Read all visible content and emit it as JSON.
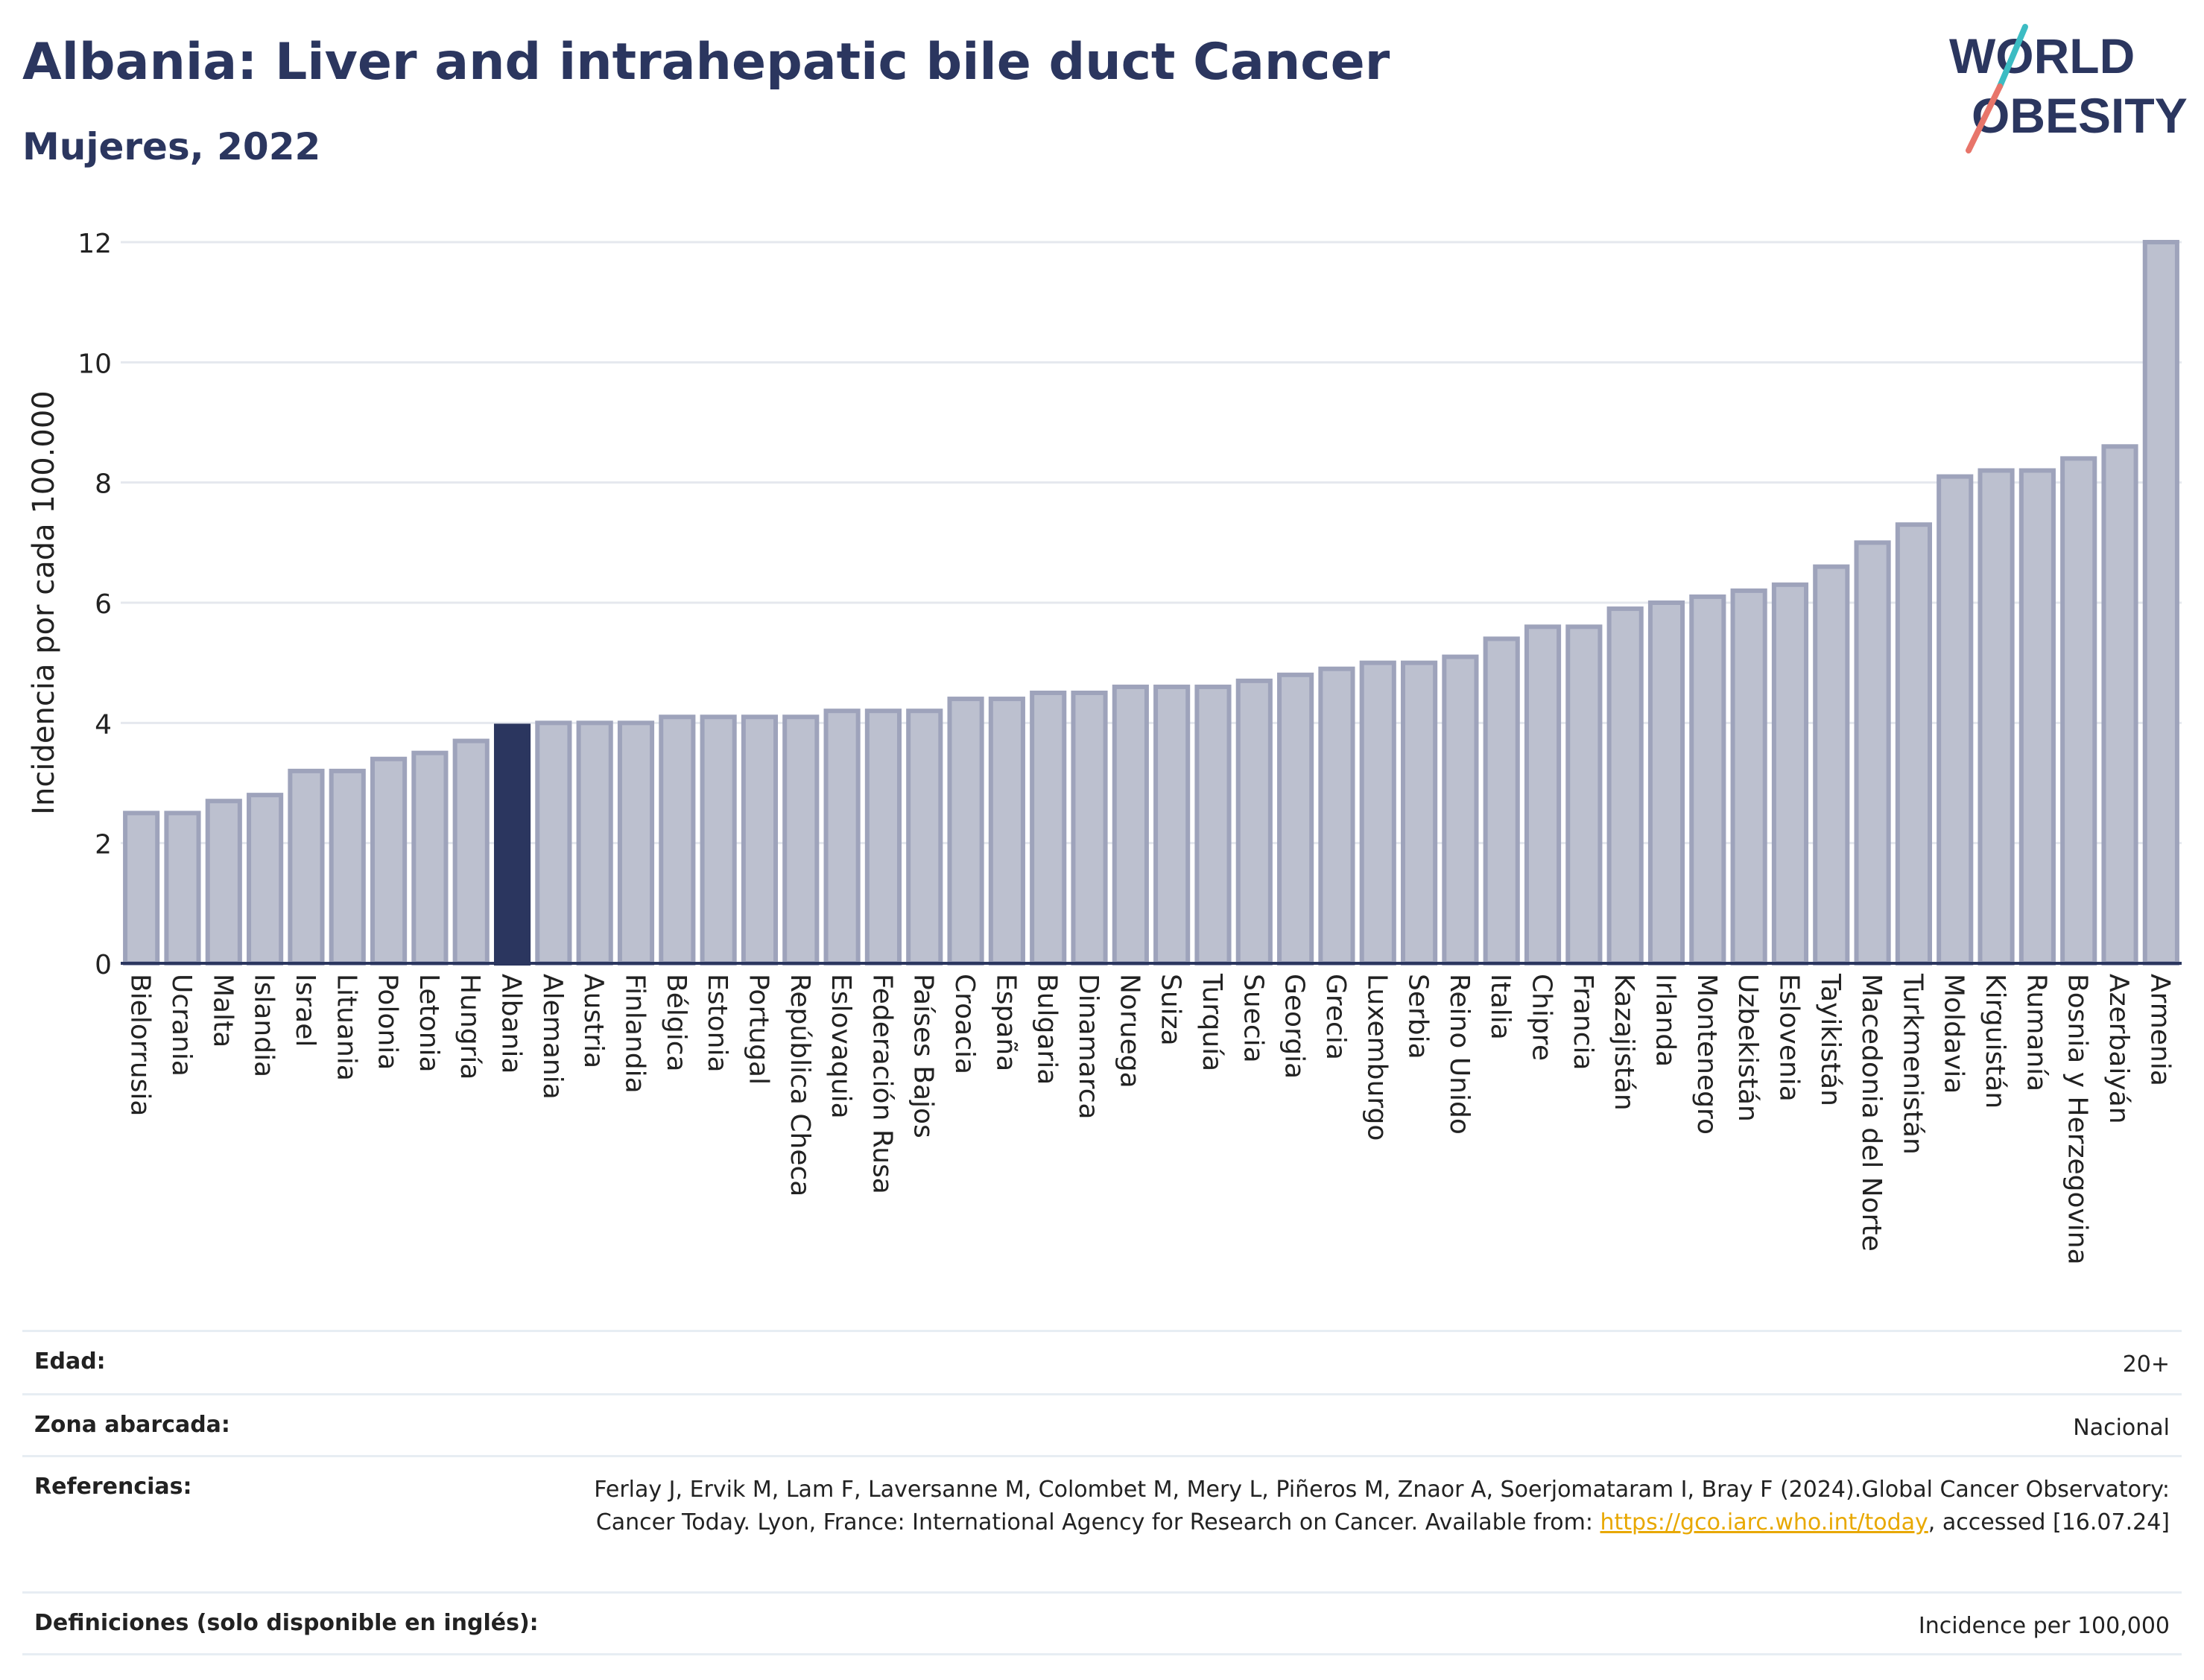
{
  "header": {
    "title": "Albania: Liver and intrahepatic bile duct Cancer",
    "subtitle": "Mujeres, 2022"
  },
  "logo": {
    "line1": "WORLD",
    "line2": "OBESITY",
    "colors": {
      "text": "#2b365f",
      "slash_top": "#3cbcc3",
      "slash_bottom": "#e8756a"
    }
  },
  "chart_data": {
    "type": "bar",
    "ylabel": "Incidencia por cada 100.000",
    "ylim": [
      0,
      12
    ],
    "yticks": [
      0,
      2,
      4,
      6,
      8,
      10,
      12
    ],
    "grid": true,
    "highlight": "Albania",
    "colors": {
      "bar": "#bcc0cf",
      "bar_border": "#9ea3bb",
      "highlight": "#2b365f",
      "grid": "#e5e8ee",
      "axis": "#2b365f"
    },
    "categories": [
      "Bielorrusia",
      "Ucrania",
      "Malta",
      "Islandia",
      "Israel",
      "Lituania",
      "Polonia",
      "Letonia",
      "Hungría",
      "Albania",
      "Alemania",
      "Austria",
      "Finlandia",
      "Bélgica",
      "Estonia",
      "Portugal",
      "República Checa",
      "Eslovaquia",
      "Federación Rusa",
      "Países Bajos",
      "Croacia",
      "España",
      "Bulgaria",
      "Dinamarca",
      "Noruega",
      "Suiza",
      "Turquía",
      "Suecia",
      "Georgia",
      "Grecia",
      "Luxemburgo",
      "Serbia",
      "Reino Unido",
      "Italia",
      "Chipre",
      "Francia",
      "Kazajistán",
      "Irlanda",
      "Montenegro",
      "Uzbekistán",
      "Eslovenia",
      "Tayikistán",
      "Macedonia del Norte",
      "Turkmenistán",
      "Moldavia",
      "Kirguistán",
      "Rumanía",
      "Bosnia y Herzegovina",
      "Azerbaiyán",
      "Armenia"
    ],
    "values": [
      2.5,
      2.5,
      2.7,
      2.8,
      3.2,
      3.2,
      3.4,
      3.5,
      3.7,
      3.95,
      4.0,
      4.0,
      4.0,
      4.1,
      4.1,
      4.1,
      4.1,
      4.2,
      4.2,
      4.2,
      4.4,
      4.4,
      4.5,
      4.5,
      4.6,
      4.6,
      4.6,
      4.7,
      4.8,
      4.9,
      5.0,
      5.0,
      5.1,
      5.4,
      5.6,
      5.6,
      5.9,
      6.0,
      6.1,
      6.2,
      6.3,
      6.6,
      7.0,
      7.3,
      8.1,
      8.2,
      8.2,
      8.4,
      8.6,
      12.0
    ]
  },
  "meta": {
    "age_label": "Edad:",
    "age_value": "20+",
    "area_label": "Zona abarcada:",
    "area_value": "Nacional",
    "ref_label": "Referencias:",
    "ref_text_1": "Ferlay J, Ervik M, Lam F, Laversanne M, Colombet M, Mery L, Piñeros M, Znaor A, Soerjomataram I, Bray F (2024).Global Cancer Observatory: Cancer Today. Lyon, France: International Agency for Research on Cancer. Available from: ",
    "ref_link": "https://gco.iarc.who.int/today",
    "ref_text_2": ", accessed [16.07.24]",
    "def_label": "Definiciones (solo disponible en inglés):",
    "def_value": "Incidence per 100,000"
  }
}
